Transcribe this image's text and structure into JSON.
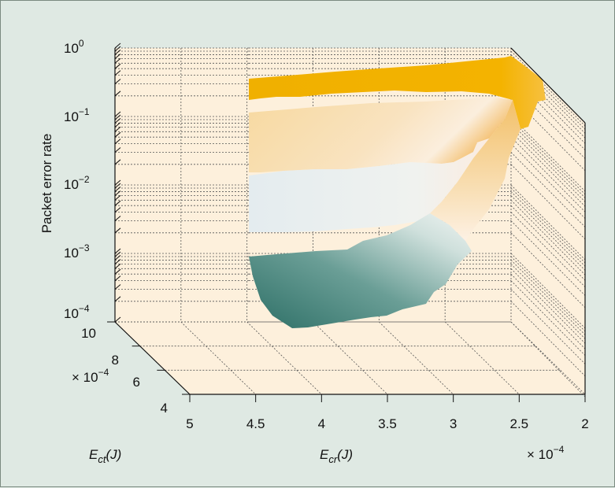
{
  "chart_data": {
    "type": "surface3d",
    "title": "",
    "zlabel": "Packet error rate",
    "zscale": "log",
    "zlim": [
      0.0001,
      1
    ],
    "z_ticks": [
      {
        "base": "10",
        "exp": "0"
      },
      {
        "base": "10",
        "exp": "−1"
      },
      {
        "base": "10",
        "exp": "−2"
      },
      {
        "base": "10",
        "exp": "−3"
      },
      {
        "base": "10",
        "exp": "−4"
      }
    ],
    "x_axis": {
      "label_main": "E",
      "label_sub": "cr",
      "label_unit": "(J)",
      "ticks": [
        "5",
        "4.5",
        "4",
        "3.5",
        "3",
        "2.5",
        "2"
      ],
      "multiplier": "× 10",
      "multiplier_exp": "−4",
      "range": [
        2,
        5
      ]
    },
    "y_axis": {
      "label_main": "E",
      "label_sub": "ct",
      "label_unit": "(J)",
      "ticks": [
        "10",
        "8",
        "6",
        "4"
      ],
      "multiplier": "× 10",
      "multiplier_exp": "−4",
      "range": [
        4,
        10
      ]
    },
    "surface_bands": [
      {
        "name": "",
        "color": "#f0b000",
        "pe_approx": 0.2
      },
      {
        "name": "",
        "color": "#f8d9a0",
        "pe_approx": 0.03
      },
      {
        "name": "",
        "color": "#e8eef0",
        "pe_approx": 0.005
      },
      {
        "name": "",
        "color": "#3f8078",
        "pe_approx": 0.0003
      }
    ]
  }
}
